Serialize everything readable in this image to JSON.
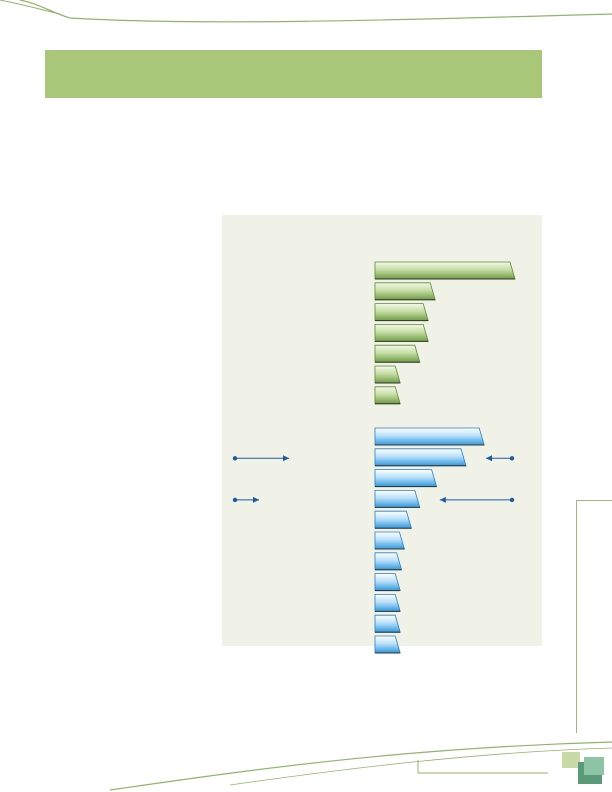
{
  "header": {
    "title": ""
  },
  "colors": {
    "accent_green": "#a8c778",
    "panel": "#f0f2e8",
    "group1_fill_light": "#e7f1d7",
    "group1_fill_dark": "#7aa54a",
    "group2_fill_light": "#eef8ff",
    "group2_fill_dark": "#39a4e6",
    "arrow": "#1e5aa0"
  },
  "chart_data": {
    "type": "bar",
    "orientation": "horizontal",
    "title": "",
    "xlabel": "",
    "ylabel": "",
    "xlim": [
      0,
      100
    ],
    "grid": false,
    "legend": "none",
    "series": [
      {
        "group": 1,
        "values": [
          100,
          43,
          38,
          38,
          32,
          18,
          18
        ]
      },
      {
        "group": 2,
        "values": [
          78,
          65,
          44,
          32,
          26,
          21,
          19,
          18,
          18,
          18,
          18
        ]
      }
    ],
    "annotations": [
      {
        "side": "left",
        "target_group": 2,
        "target_index": 1
      },
      {
        "side": "right",
        "target_group": 2,
        "target_index": 1
      },
      {
        "side": "left",
        "target_group": 2,
        "target_index": 3
      },
      {
        "side": "right",
        "target_group": 2,
        "target_index": 3
      }
    ]
  }
}
